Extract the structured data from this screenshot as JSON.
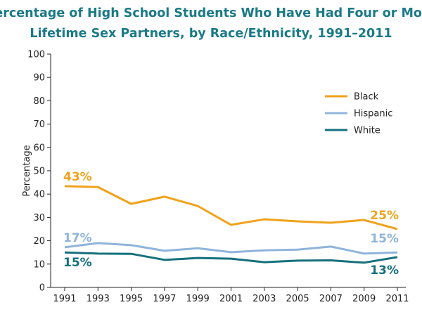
{
  "chart_data": {
    "type": "line",
    "title": "Percentage of High School Students Who Have Had Four or More Lifetime Sex Partners, by Race/Ethnicity, 1991–2011",
    "title_lines": [
      "Percentage of High School Students Who Have Had Four or More",
      "Lifetime Sex Partners, by Race/Ethnicity, 1991–2011"
    ],
    "xlabel": "",
    "ylabel": "Percentage",
    "ylim": [
      0,
      100
    ],
    "yticks": [
      "0",
      "10",
      "20",
      "30",
      "40",
      "50",
      "60",
      "70",
      "80",
      "90",
      "100"
    ],
    "categories": [
      "1991",
      "1993",
      "1995",
      "1997",
      "1999",
      "2001",
      "2003",
      "2005",
      "2007",
      "2009",
      "2011"
    ],
    "grid": false,
    "legend_position": "top-right",
    "series": [
      {
        "name": "Black",
        "color": "#f0a21c",
        "values": [
          43.4,
          43.0,
          35.8,
          38.9,
          34.9,
          26.8,
          29.2,
          28.3,
          27.7,
          28.9,
          25.0
        ],
        "start_label": "43%",
        "end_label": "25%"
      },
      {
        "name": "Hispanic",
        "color": "#8fb4da",
        "values": [
          17.2,
          19.0,
          18.1,
          15.7,
          16.8,
          15.1,
          15.9,
          16.2,
          17.5,
          14.5,
          15.0
        ],
        "start_label": "17%",
        "end_label": "15%"
      },
      {
        "name": "White",
        "color": "#16707c",
        "values": [
          15.0,
          14.5,
          14.4,
          11.8,
          12.6,
          12.3,
          10.8,
          11.5,
          11.6,
          10.6,
          13.0
        ],
        "start_label": "15%",
        "end_label": "13%"
      }
    ]
  }
}
